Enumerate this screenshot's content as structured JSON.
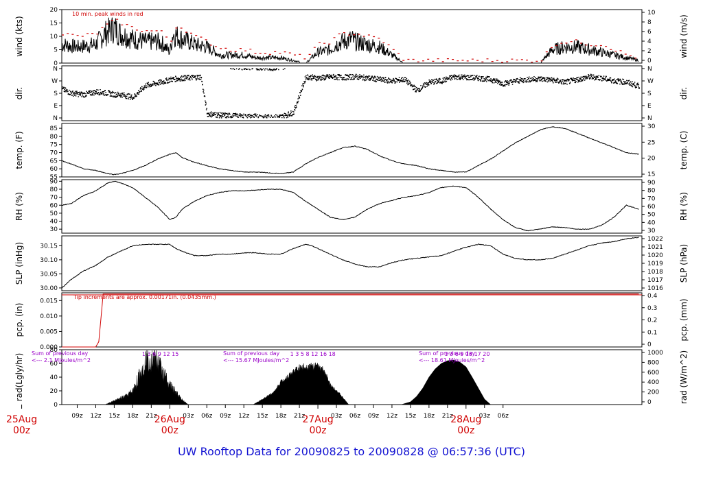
{
  "title": "UW Rooftop Data for 20090825  to  20090828 @ 06:57:36  (UTC)",
  "colors": {
    "red": "#d00000",
    "purple": "#9a00c8",
    "blue": "#1414d2",
    "black": "#000000"
  },
  "chart_data": [
    {
      "type": "line",
      "id": "wind",
      "ylabel_left": "wind (kts)",
      "ylabel_right": "wind (m/s)",
      "ylim": [
        0,
        20
      ],
      "yticks_left": [
        0,
        5,
        10,
        15,
        20
      ],
      "yticks_right": [
        "0",
        "2",
        "4",
        "6",
        "8",
        "10"
      ],
      "annotation": "10 min. peak winds in red",
      "series": [
        {
          "role": "mean",
          "color": "#000000",
          "x": [
            6.5,
            9,
            12,
            13.5,
            15,
            16,
            18,
            20,
            22,
            23,
            24,
            24.5,
            26,
            28,
            30,
            31.5,
            32,
            33.5,
            34,
            36,
            38,
            40,
            42,
            44,
            46,
            48,
            50,
            51,
            52,
            53.5,
            54,
            56,
            58,
            60,
            62,
            64,
            66,
            70,
            74,
            76,
            78,
            80,
            82,
            84,
            86,
            88,
            90,
            92,
            94,
            96,
            98,
            100
          ],
          "values": [
            7,
            6,
            7,
            11,
            13,
            11,
            9,
            8,
            8,
            7,
            4,
            11,
            9,
            7,
            6,
            4,
            3,
            3,
            3,
            3,
            2,
            2,
            2,
            1,
            0,
            4,
            5,
            7,
            8,
            9,
            8,
            7,
            6,
            3,
            0,
            0,
            0,
            0,
            0,
            0,
            0,
            0,
            0,
            0,
            5,
            6,
            6,
            5,
            4,
            3,
            2,
            1
          ]
        },
        {
          "role": "10 min. peak winds",
          "color": "#d00000",
          "x": [
            6.5,
            9,
            12,
            13.5,
            15,
            16,
            18,
            20,
            22,
            23,
            24,
            24.5,
            26,
            28,
            30,
            31.5,
            32,
            33.5,
            34,
            36,
            38,
            40,
            42,
            44,
            46,
            48,
            50,
            51,
            52,
            53.5,
            54,
            56,
            58,
            60,
            62,
            64,
            66,
            70,
            74,
            76,
            78,
            80,
            82,
            84,
            86,
            88,
            90,
            92,
            94,
            96,
            98,
            100
          ],
          "values": [
            11,
            10,
            11,
            14,
            16,
            15,
            13,
            12,
            12,
            11,
            7,
            14,
            13,
            10,
            8,
            6,
            6,
            5,
            5,
            5,
            4,
            4,
            4,
            3,
            2,
            7,
            8,
            10,
            11,
            11,
            11,
            10,
            9,
            5,
            1,
            1,
            1,
            1,
            1,
            1,
            1,
            1,
            1,
            1,
            7,
            8,
            8,
            7,
            7,
            5,
            3,
            2
          ]
        }
      ]
    },
    {
      "type": "scatter",
      "id": "dir",
      "ylabel_left": "dir.",
      "ylabel_right": "dir.",
      "yticks_left": [
        "N",
        "W",
        "S",
        "E",
        "N"
      ],
      "yticks_right": [
        "N",
        "W",
        "S",
        "E",
        "N"
      ],
      "ylim": [
        0,
        360
      ],
      "x": [
        6.5,
        8,
        10,
        12,
        14,
        15,
        16,
        17,
        18,
        20,
        22,
        23,
        24,
        26,
        28,
        29,
        30,
        32,
        34,
        36,
        38,
        40,
        42,
        44,
        46,
        47,
        48,
        50,
        52,
        54,
        56,
        58,
        60,
        62,
        64,
        66,
        68,
        70,
        72,
        74,
        76,
        78,
        80,
        82,
        84,
        86,
        88,
        90,
        92,
        94,
        96,
        98,
        100
      ],
      "values": [
        210,
        180,
        170,
        190,
        180,
        170,
        170,
        160,
        150,
        235,
        255,
        265,
        280,
        290,
        295,
        300,
        30,
        20,
        15,
        10,
        10,
        5,
        8,
        40,
        300,
        295,
        290,
        300,
        295,
        300,
        290,
        280,
        270,
        280,
        200,
        260,
        270,
        300,
        295,
        290,
        280,
        250,
        270,
        280,
        285,
        275,
        260,
        280,
        300,
        290,
        270,
        260,
        230
      ]
    },
    {
      "type": "line",
      "id": "temp",
      "ylabel_left": "temp. (F)",
      "ylabel_right": "temp. (C)",
      "ylim": [
        55,
        88
      ],
      "yticks_left": [
        55,
        60,
        65,
        70,
        75,
        80,
        85
      ],
      "yticks_right": [
        "15",
        "20",
        "25",
        "30"
      ],
      "x": [
        6.5,
        8,
        10,
        12,
        14,
        15,
        16,
        18,
        20,
        22,
        24,
        25,
        26,
        28,
        30,
        32,
        34,
        36,
        38,
        40,
        42,
        44,
        46,
        48,
        50,
        52,
        54,
        56,
        58,
        60,
        62,
        64,
        66,
        68,
        70,
        72,
        74,
        76,
        78,
        80,
        82,
        84,
        86,
        88,
        90,
        92,
        94,
        96,
        98,
        100
      ],
      "values": [
        65,
        63,
        60,
        59,
        57,
        56.5,
        57,
        59,
        62,
        66,
        69,
        70,
        67,
        64,
        62,
        60,
        59,
        58,
        58,
        57.5,
        57,
        58,
        63,
        67,
        70,
        73,
        74,
        72,
        68,
        65,
        63,
        62,
        60,
        59,
        58,
        58,
        62,
        66,
        71,
        76,
        80,
        84,
        86,
        85,
        82,
        79,
        76,
        73,
        70,
        69
      ]
    },
    {
      "type": "line",
      "id": "rh",
      "ylabel_left": "RH (%)",
      "ylabel_right": "RH (%)",
      "ylim": [
        25,
        92
      ],
      "yticks_left": [
        30,
        40,
        50,
        60,
        70,
        80,
        90
      ],
      "yticks_right": [
        "30",
        "40",
        "50",
        "60",
        "70",
        "80",
        "90"
      ],
      "x": [
        6.5,
        8,
        10,
        12,
        14,
        15,
        16,
        18,
        20,
        22,
        24,
        25,
        26,
        28,
        30,
        32,
        34,
        36,
        38,
        40,
        42,
        44,
        46,
        48,
        50,
        52,
        54,
        56,
        58,
        60,
        62,
        64,
        66,
        68,
        70,
        72,
        74,
        76,
        78,
        80,
        82,
        84,
        86,
        88,
        90,
        92,
        94,
        96,
        98,
        100
      ],
      "values": [
        60,
        62,
        72,
        78,
        88,
        90,
        88,
        82,
        70,
        58,
        42,
        45,
        55,
        65,
        72,
        76,
        78,
        78,
        79,
        80,
        80,
        76,
        65,
        55,
        45,
        42,
        45,
        55,
        62,
        66,
        70,
        72,
        76,
        82,
        84,
        82,
        70,
        55,
        42,
        32,
        28,
        30,
        33,
        32,
        30,
        30,
        35,
        45,
        60,
        55
      ]
    },
    {
      "type": "line",
      "id": "slp",
      "ylabel_left": "SLP (inHg)",
      "ylabel_right": "SLP (hPa)",
      "ylim": [
        29.99,
        30.185
      ],
      "yticks_left": [
        "30.00",
        "30.05",
        "30.10",
        "30.15"
      ],
      "yticks_right": [
        "1016",
        "1017",
        "1018",
        "1019",
        "1020",
        "1021",
        "1022"
      ],
      "x": [
        6.5,
        8,
        10,
        12,
        14,
        16,
        18,
        20,
        22,
        24,
        25,
        26,
        28,
        30,
        32,
        34,
        36,
        38,
        40,
        42,
        44,
        46,
        47,
        48,
        50,
        52,
        54,
        56,
        58,
        60,
        62,
        64,
        66,
        68,
        70,
        72,
        74,
        76,
        78,
        80,
        82,
        84,
        86,
        88,
        90,
        92,
        94,
        96,
        98,
        100
      ],
      "values": [
        30.0,
        30.03,
        30.06,
        30.08,
        30.11,
        30.13,
        30.15,
        30.155,
        30.155,
        30.155,
        30.14,
        30.13,
        30.115,
        30.115,
        30.12,
        30.12,
        30.125,
        30.125,
        30.12,
        30.12,
        30.14,
        30.155,
        30.15,
        30.14,
        30.12,
        30.1,
        30.085,
        30.075,
        30.075,
        30.09,
        30.1,
        30.105,
        30.11,
        30.115,
        30.13,
        30.145,
        30.155,
        30.15,
        30.12,
        30.105,
        30.1,
        30.1,
        30.105,
        30.12,
        30.135,
        30.15,
        30.16,
        30.165,
        30.175,
        30.18
      ]
    },
    {
      "type": "line",
      "id": "pcp",
      "ylabel_left": "pcp. (in)",
      "ylabel_right": "pcp. (mm)",
      "ylim": [
        0,
        0.0175
      ],
      "yticks_left": [
        "0.000",
        "0.005",
        "0.010",
        "0.015"
      ],
      "yticks_right": [
        "0",
        "0.1",
        "0.2",
        "0.3",
        "0.4"
      ],
      "annotation": "Tip increments are approx. 0.00171in. (0.0435mm.)",
      "x": [
        6.5,
        12.0,
        12.5,
        13.0,
        13.2,
        100
      ],
      "values": [
        0,
        0,
        0.00171,
        0.0125,
        0.0171,
        0.0171
      ]
    },
    {
      "type": "area",
      "id": "rad",
      "ylabel_left": "rad(Lgly/hr)",
      "ylabel_right": "rad (W/m^2)",
      "ylim": [
        0,
        80
      ],
      "yticks_left": [
        0,
        20,
        40,
        60,
        80
      ],
      "yticks_right": [
        "0",
        "200",
        "400",
        "600",
        "800",
        "1000"
      ],
      "x": [
        13.5,
        15,
        16,
        17,
        18,
        19,
        20,
        21,
        22,
        23,
        24,
        25,
        26,
        27,
        37.5,
        39,
        40,
        41,
        42,
        43,
        44,
        45,
        46,
        47,
        48,
        49,
        50,
        51,
        53,
        61.5,
        63,
        64,
        65,
        66,
        67,
        68,
        69,
        70,
        71,
        72,
        73,
        74,
        75,
        76
      ],
      "values": [
        0,
        6,
        10,
        14,
        22,
        45,
        70,
        78,
        72,
        50,
        32,
        20,
        8,
        0,
        0,
        8,
        14,
        20,
        35,
        42,
        50,
        56,
        58,
        59,
        58,
        52,
        30,
        22,
        0,
        0,
        4,
        12,
        24,
        40,
        52,
        60,
        64,
        65,
        62,
        55,
        40,
        24,
        8,
        0
      ],
      "summaries": [
        {
          "label": "Sum of previous day",
          "value": "<--- 2.1 MJoules/m^2"
        },
        {
          "label": "Sum of previous day",
          "value": "<--- 15.67 MJoules/m^2"
        },
        {
          "label": "Sum of previous day",
          "value": "<--- 18.61 MJoules/m^2"
        }
      ],
      "hour_labels": [
        {
          "x": 19.5,
          "text": "1   3   6   9   12   15"
        },
        {
          "x": 43.5,
          "text": "1   3   5   8   12   16   18"
        },
        {
          "x": 68.5,
          "text": "1   3   6   9   13   17   20"
        }
      ]
    }
  ],
  "x_axis": {
    "tick_labels": [
      {
        "hour": 9,
        "text": "09z"
      },
      {
        "hour": 12,
        "text": "12z"
      },
      {
        "hour": 15,
        "text": "15z"
      },
      {
        "hour": 18,
        "text": "18z"
      },
      {
        "hour": 21,
        "text": "21z"
      },
      {
        "hour": 27,
        "text": "03z"
      },
      {
        "hour": 30,
        "text": "06z"
      },
      {
        "hour": 33,
        "text": "09z"
      },
      {
        "hour": 36,
        "text": "12z"
      },
      {
        "hour": 39,
        "text": "15z"
      },
      {
        "hour": 42,
        "text": "18z"
      },
      {
        "hour": 45,
        "text": "21z"
      },
      {
        "hour": 51,
        "text": "03z"
      },
      {
        "hour": 54,
        "text": "06z"
      },
      {
        "hour": 57,
        "text": "09z"
      },
      {
        "hour": 60,
        "text": "12z"
      },
      {
        "hour": 63,
        "text": "15z"
      },
      {
        "hour": 66,
        "text": "18z"
      },
      {
        "hour": 69,
        "text": "21z"
      },
      {
        "hour": 75,
        "text": "03z"
      },
      {
        "hour": 78,
        "text": "06z"
      }
    ],
    "day_labels": [
      {
        "hour": 0,
        "date": "25Aug",
        "time": "00z"
      },
      {
        "hour": 24,
        "date": "26Aug",
        "time": "00z"
      },
      {
        "hour": 48,
        "date": "27Aug",
        "time": "00z"
      },
      {
        "hour": 72,
        "date": "28Aug",
        "time": "00z"
      }
    ]
  }
}
